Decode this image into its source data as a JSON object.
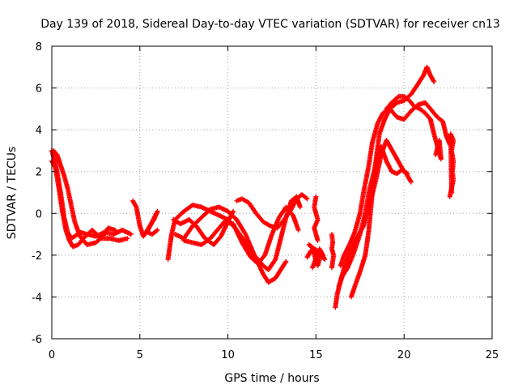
{
  "chart_data": {
    "type": "scatter",
    "title": "Day 139 of 2018, Sidereal Day-to-day VTEC variation (SDTVAR) for receiver cn13",
    "xlabel": "GPS time / hours",
    "ylabel": "SDTVAR / TECUs",
    "xlim": [
      0,
      25
    ],
    "ylim": [
      -6,
      8
    ],
    "xticks": [
      "0",
      "5",
      "10",
      "15",
      "20",
      "25"
    ],
    "yticks": [
      "-6",
      "-4",
      "-2",
      "0",
      "2",
      "4",
      "6",
      "8"
    ],
    "grid": true,
    "legend": "none",
    "marker": "+",
    "color": "#ff0000",
    "series": [
      {
        "points": [
          [
            0.0,
            3.0
          ],
          [
            0.1,
            2.7
          ],
          [
            0.3,
            2.0
          ],
          [
            0.5,
            1.0
          ],
          [
            0.7,
            -0.2
          ],
          [
            0.9,
            -0.9
          ],
          [
            1.1,
            -1.2
          ],
          [
            1.3,
            -1.1
          ],
          [
            1.6,
            -0.9
          ],
          [
            2.0,
            -1.0
          ],
          [
            2.5,
            -1.1
          ],
          [
            3.0,
            -0.9
          ],
          [
            3.5,
            -1.0
          ],
          [
            4.0,
            -0.8
          ],
          [
            4.5,
            -1.0
          ]
        ]
      },
      {
        "points": [
          [
            0.0,
            2.5
          ],
          [
            0.2,
            2.2
          ],
          [
            0.4,
            1.2
          ],
          [
            0.6,
            0.1
          ],
          [
            0.8,
            -0.8
          ],
          [
            1.0,
            -1.3
          ],
          [
            1.2,
            -1.6
          ],
          [
            1.5,
            -1.5
          ],
          [
            1.9,
            -1.1
          ],
          [
            2.3,
            -0.8
          ],
          [
            2.8,
            -1.2
          ],
          [
            3.3,
            -1.2
          ],
          [
            3.8,
            -1.3
          ],
          [
            4.3,
            -1.2
          ]
        ]
      },
      {
        "points": [
          [
            0.1,
            3.0
          ],
          [
            0.3,
            2.8
          ],
          [
            0.5,
            2.3
          ],
          [
            0.7,
            1.8
          ],
          [
            0.9,
            1.2
          ],
          [
            1.1,
            0.4
          ],
          [
            1.3,
            -0.4
          ],
          [
            1.6,
            -1.1
          ],
          [
            2.0,
            -1.5
          ],
          [
            2.5,
            -1.4
          ],
          [
            2.9,
            -1.1
          ],
          [
            3.2,
            -0.7
          ],
          [
            3.6,
            -0.8
          ]
        ]
      },
      {
        "points": [
          [
            4.6,
            0.6
          ],
          [
            4.8,
            0.3
          ],
          [
            5.0,
            -0.6
          ],
          [
            5.2,
            -1.1
          ],
          [
            5.5,
            -0.7
          ],
          [
            5.8,
            -0.3
          ],
          [
            6.0,
            0.1
          ],
          [
            5.4,
            -0.9
          ],
          [
            5.7,
            -1.0
          ],
          [
            6.0,
            -0.8
          ]
        ]
      },
      {
        "points": [
          [
            6.6,
            -2.2
          ],
          [
            6.7,
            -1.6
          ],
          [
            6.8,
            -1.0
          ],
          [
            7.0,
            -0.3
          ],
          [
            7.5,
            0.1
          ],
          [
            8.0,
            0.4
          ],
          [
            8.5,
            0.3
          ],
          [
            9.0,
            0.1
          ],
          [
            9.5,
            -0.1
          ],
          [
            10.0,
            -0.3
          ],
          [
            10.5,
            -0.8
          ],
          [
            11.0,
            -1.4
          ],
          [
            11.5,
            -2.0
          ],
          [
            12.0,
            -2.5
          ],
          [
            12.3,
            -2.7
          ],
          [
            12.7,
            -2.2
          ],
          [
            13.0,
            -1.2
          ],
          [
            13.3,
            -0.2
          ],
          [
            13.6,
            0.6
          ],
          [
            13.9,
            0.8
          ],
          [
            14.1,
            0.3
          ]
        ]
      },
      {
        "points": [
          [
            7.0,
            -1.0
          ],
          [
            7.5,
            -1.2
          ],
          [
            8.0,
            -0.6
          ],
          [
            8.5,
            -0.2
          ],
          [
            9.0,
            0.2
          ],
          [
            9.5,
            0.3
          ],
          [
            10.0,
            0.1
          ],
          [
            10.5,
            -0.3
          ],
          [
            11.0,
            -1.0
          ],
          [
            11.5,
            -2.0
          ],
          [
            12.0,
            -2.9
          ],
          [
            12.3,
            -3.3
          ],
          [
            12.7,
            -3.1
          ],
          [
            13.0,
            -2.7
          ],
          [
            13.3,
            -2.3
          ]
        ]
      },
      {
        "points": [
          [
            7.5,
            -1.3
          ],
          [
            8.0,
            -1.4
          ],
          [
            8.5,
            -1.5
          ],
          [
            9.0,
            -1.2
          ],
          [
            9.5,
            -0.7
          ],
          [
            9.8,
            -0.4
          ],
          [
            10.3,
            -0.5
          ],
          [
            10.8,
            -1.4
          ],
          [
            11.3,
            -2.1
          ],
          [
            11.7,
            -2.4
          ],
          [
            12.1,
            -2.0
          ],
          [
            12.5,
            -1.0
          ],
          [
            12.9,
            -0.2
          ],
          [
            13.3,
            0.3
          ],
          [
            13.7,
            -0.1
          ],
          [
            14.0,
            -0.8
          ]
        ]
      },
      {
        "points": [
          [
            6.9,
            -0.3
          ],
          [
            7.3,
            -0.5
          ],
          [
            7.8,
            -0.3
          ],
          [
            8.2,
            -0.6
          ],
          [
            8.7,
            -1.2
          ],
          [
            9.2,
            -1.5
          ],
          [
            9.6,
            -1.1
          ],
          [
            10.0,
            -0.4
          ],
          [
            10.3,
            0.1
          ]
        ]
      },
      {
        "points": [
          [
            10.5,
            0.6
          ],
          [
            10.8,
            0.7
          ],
          [
            11.2,
            0.5
          ],
          [
            11.6,
            0.0
          ],
          [
            12.0,
            -0.4
          ],
          [
            12.4,
            -0.6
          ],
          [
            12.8,
            -0.7
          ],
          [
            13.2,
            -0.3
          ],
          [
            13.6,
            0.2
          ],
          [
            13.9,
            0.7
          ],
          [
            14.2,
            0.9
          ],
          [
            14.5,
            0.7
          ]
        ]
      },
      {
        "points": [
          [
            14.5,
            -2.1
          ],
          [
            14.7,
            -1.8
          ],
          [
            14.9,
            -1.9
          ],
          [
            15.0,
            -2.3
          ],
          [
            15.1,
            -2.5
          ],
          [
            15.3,
            -1.9
          ],
          [
            15.5,
            -2.2
          ],
          [
            14.6,
            -1.5
          ],
          [
            15.4,
            -2.0
          ],
          [
            15.2,
            -1.7
          ],
          [
            14.8,
            -2.6
          ]
        ]
      },
      {
        "points": [
          [
            15.0,
            0.8
          ],
          [
            14.9,
            0.3
          ],
          [
            15.0,
            0.0
          ],
          [
            15.1,
            -0.3
          ],
          [
            14.9,
            -0.7
          ],
          [
            15.0,
            -1.0
          ],
          [
            15.1,
            -1.3
          ]
        ]
      },
      {
        "points": [
          [
            15.9,
            -1.0
          ],
          [
            15.95,
            -1.4
          ],
          [
            15.9,
            -1.7
          ],
          [
            16.0,
            -2.0
          ],
          [
            15.9,
            -2.6
          ]
        ]
      },
      {
        "points": [
          [
            16.1,
            -4.5
          ],
          [
            16.2,
            -3.9
          ],
          [
            16.4,
            -3.2
          ],
          [
            16.6,
            -2.6
          ],
          [
            16.9,
            -1.9
          ],
          [
            17.3,
            -1.2
          ],
          [
            17.7,
            -0.6
          ],
          [
            18.1,
            0.6
          ],
          [
            18.4,
            1.6
          ],
          [
            18.7,
            2.8
          ],
          [
            19.0,
            3.5
          ],
          [
            19.2,
            3.2
          ],
          [
            19.4,
            2.9
          ],
          [
            19.6,
            2.6
          ],
          [
            19.8,
            2.3
          ],
          [
            20.0,
            2.0
          ],
          [
            20.2,
            1.8
          ],
          [
            20.4,
            1.5
          ]
        ]
      },
      {
        "points": [
          [
            16.3,
            -3.5
          ],
          [
            16.5,
            -3.0
          ],
          [
            16.8,
            -2.6
          ],
          [
            17.1,
            -2.0
          ],
          [
            17.5,
            -1.0
          ],
          [
            17.8,
            0.0
          ],
          [
            18.0,
            1.0
          ],
          [
            18.3,
            2.0
          ],
          [
            18.5,
            2.8
          ],
          [
            18.7,
            3.2
          ],
          [
            19.0,
            2.5
          ],
          [
            19.3,
            2.0
          ],
          [
            19.6,
            1.9
          ],
          [
            19.9,
            2.1
          ],
          [
            20.2,
            1.9
          ]
        ]
      },
      {
        "points": [
          [
            16.4,
            -2.5
          ],
          [
            16.6,
            -2.0
          ],
          [
            16.9,
            -1.5
          ],
          [
            17.2,
            -0.9
          ],
          [
            17.5,
            0.0
          ],
          [
            17.7,
            1.0
          ],
          [
            18.0,
            2.3
          ],
          [
            18.2,
            3.4
          ],
          [
            18.5,
            4.3
          ],
          [
            18.8,
            4.8
          ],
          [
            19.2,
            5.0
          ],
          [
            19.6,
            4.6
          ],
          [
            20.0,
            4.5
          ],
          [
            20.4,
            4.9
          ],
          [
            20.8,
            5.2
          ],
          [
            21.2,
            5.3
          ],
          [
            21.6,
            4.9
          ],
          [
            21.9,
            4.6
          ],
          [
            22.2,
            4.4
          ],
          [
            22.4,
            3.7
          ],
          [
            22.6,
            3.3
          ]
        ]
      },
      {
        "points": [
          [
            17.0,
            -4.0
          ],
          [
            17.2,
            -3.5
          ],
          [
            17.5,
            -2.8
          ],
          [
            17.8,
            -2.0
          ],
          [
            18.0,
            -0.8
          ],
          [
            18.2,
            1.0
          ],
          [
            18.4,
            2.5
          ],
          [
            18.6,
            3.8
          ],
          [
            18.9,
            4.5
          ],
          [
            19.2,
            5.0
          ],
          [
            19.6,
            5.3
          ],
          [
            20.0,
            5.4
          ],
          [
            20.4,
            5.7
          ],
          [
            20.8,
            6.2
          ],
          [
            21.1,
            6.6
          ],
          [
            21.3,
            7.0
          ],
          [
            21.5,
            6.6
          ],
          [
            21.7,
            6.3
          ]
        ]
      },
      {
        "points": [
          [
            19.0,
            5.0
          ],
          [
            19.3,
            5.3
          ],
          [
            19.7,
            5.6
          ],
          [
            20.0,
            5.6
          ],
          [
            20.3,
            5.4
          ],
          [
            20.6,
            5.1
          ],
          [
            20.9,
            5.0
          ],
          [
            21.2,
            4.8
          ],
          [
            21.5,
            4.5
          ],
          [
            21.7,
            3.8
          ],
          [
            21.9,
            3.2
          ],
          [
            22.1,
            2.6
          ],
          [
            22.0,
            3.5
          ],
          [
            21.8,
            2.8
          ]
        ]
      },
      {
        "points": [
          [
            22.6,
            0.8
          ],
          [
            22.7,
            1.2
          ],
          [
            22.8,
            1.6
          ],
          [
            22.75,
            2.0
          ],
          [
            22.8,
            2.5
          ],
          [
            22.7,
            3.0
          ],
          [
            22.8,
            3.5
          ],
          [
            22.65,
            3.8
          ],
          [
            22.7,
            1.0
          ]
        ]
      }
    ]
  }
}
